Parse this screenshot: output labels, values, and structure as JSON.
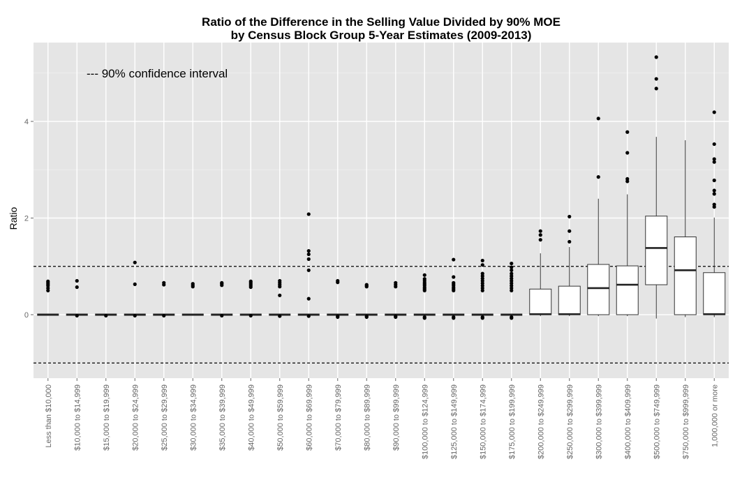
{
  "chart_data": {
    "type": "box",
    "title": "Ratio of the Difference in the Selling Value Divided by 90% MOE",
    "subtitle": "by Census Block Group 5-Year Estimates (2009-2013)",
    "xlabel": "",
    "ylabel": "Ratio",
    "ylim": [
      -1.3,
      5.6
    ],
    "yticks": [
      0,
      2,
      4
    ],
    "grid": true,
    "annotation": "--- 90% confidence interval",
    "reference_lines": [
      1,
      -1
    ],
    "categories": [
      "Less than $10,000",
      "$10,000 to $14,999",
      "$15,000 to $19,999",
      "$20,000 to $24,999",
      "$25,000 to $29,999",
      "$30,000 to $34,999",
      "$35,000 to $39,999",
      "$40,000 to $49,999",
      "$50,000 to $59,999",
      "$60,000 to $69,999",
      "$70,000 to $79,999",
      "$80,000 to $89,999",
      "$90,000 to $99,999",
      "$100,000 to $124,999",
      "$125,000 to $149,999",
      "$150,000 to $174,999",
      "$175,000 to $199,999",
      "$200,000 to $249,999",
      "$250,000 to $299,999",
      "$300,000 to $399,999",
      "$400,000 to $409,999",
      "$500,000 to $749,999",
      "$750,000 to $999,999",
      "1,000,000 or more"
    ],
    "boxes": [
      {
        "low": 0,
        "q1": 0,
        "median": 0,
        "q3": 0,
        "high": 0,
        "outliers": [
          0.5,
          0.55,
          0.6,
          0.63,
          0.66,
          0.69
        ]
      },
      {
        "low": -0.02,
        "q1": 0,
        "median": 0,
        "q3": 0,
        "high": 0,
        "outliers": [
          0.57,
          0.7,
          -0.02
        ]
      },
      {
        "low": -0.02,
        "q1": 0,
        "median": 0,
        "q3": 0,
        "high": 0,
        "outliers": [
          -0.02
        ]
      },
      {
        "low": -0.02,
        "q1": 0,
        "median": 0,
        "q3": 0,
        "high": 0,
        "outliers": [
          0.63,
          1.08,
          -0.02
        ]
      },
      {
        "low": -0.02,
        "q1": 0,
        "median": 0,
        "q3": 0,
        "high": 0,
        "outliers": [
          0.62,
          0.66,
          -0.02
        ]
      },
      {
        "low": 0,
        "q1": 0,
        "median": 0,
        "q3": 0,
        "high": 0,
        "outliers": [
          0.58,
          0.61,
          0.64
        ]
      },
      {
        "low": -0.02,
        "q1": 0,
        "median": 0,
        "q3": 0,
        "high": 0,
        "outliers": [
          0.61,
          0.64,
          0.66,
          -0.02
        ]
      },
      {
        "low": -0.02,
        "q1": 0,
        "median": 0,
        "q3": 0,
        "high": 0,
        "outliers": [
          0.57,
          0.6,
          0.63,
          0.66,
          0.69,
          -0.02
        ]
      },
      {
        "low": -0.03,
        "q1": 0,
        "median": 0,
        "q3": 0,
        "high": 0,
        "outliers": [
          0.4,
          0.58,
          0.62,
          0.66,
          0.7,
          -0.03
        ]
      },
      {
        "low": -0.03,
        "q1": 0,
        "median": 0,
        "q3": 0,
        "high": 0,
        "outliers": [
          0.33,
          0.92,
          1.15,
          1.25,
          1.32,
          2.08,
          -0.03
        ]
      },
      {
        "low": -0.05,
        "q1": 0,
        "median": 0,
        "q3": 0,
        "high": 0,
        "outliers": [
          0.67,
          0.7,
          -0.05,
          -0.03
        ]
      },
      {
        "low": -0.05,
        "q1": 0,
        "median": 0,
        "q3": 0,
        "high": 0,
        "outliers": [
          0.58,
          0.6,
          0.62,
          -0.05,
          -0.03
        ]
      },
      {
        "low": -0.05,
        "q1": 0,
        "median": 0,
        "q3": 0,
        "high": 0,
        "outliers": [
          0.58,
          0.62,
          0.66,
          -0.05,
          -0.03
        ]
      },
      {
        "low": -0.07,
        "q1": 0,
        "median": 0,
        "q3": 0,
        "high": 0,
        "outliers": [
          0.5,
          0.53,
          0.56,
          0.6,
          0.63,
          0.66,
          0.7,
          0.74,
          0.82,
          -0.07,
          -0.05
        ]
      },
      {
        "low": -0.07,
        "q1": 0,
        "median": 0,
        "q3": 0,
        "high": 0,
        "outliers": [
          0.5,
          0.53,
          0.56,
          0.6,
          0.63,
          0.66,
          0.78,
          1.14,
          -0.07,
          -0.05
        ]
      },
      {
        "low": -0.07,
        "q1": 0,
        "median": 0,
        "q3": 0,
        "high": 0,
        "outliers": [
          0.5,
          0.55,
          0.6,
          0.65,
          0.7,
          0.75,
          0.8,
          0.85,
          1.03,
          1.12,
          -0.07,
          -0.05
        ]
      },
      {
        "low": -0.07,
        "q1": 0,
        "median": 0,
        "q3": 0,
        "high": 0,
        "outliers": [
          0.5,
          0.55,
          0.6,
          0.65,
          0.7,
          0.75,
          0.8,
          0.85,
          0.92,
          0.98,
          1.06,
          -0.07,
          -0.05
        ]
      },
      {
        "low": -0.03,
        "q1": 0,
        "median": 0.01,
        "q3": 0.53,
        "high": 1.27,
        "outliers": [
          1.55,
          1.65,
          1.73
        ]
      },
      {
        "low": -0.03,
        "q1": 0,
        "median": 0.01,
        "q3": 0.59,
        "high": 1.4,
        "outliers": [
          1.51,
          1.73,
          2.03
        ]
      },
      {
        "low": -0.03,
        "q1": 0,
        "median": 0.55,
        "q3": 1.04,
        "high": 2.4,
        "outliers": [
          2.85,
          4.06
        ]
      },
      {
        "low": -0.03,
        "q1": 0,
        "median": 0.62,
        "q3": 1.01,
        "high": 2.49,
        "outliers": [
          2.76,
          2.81,
          3.35,
          3.78
        ]
      },
      {
        "low": -0.08,
        "q1": 0.62,
        "median": 1.38,
        "q3": 2.04,
        "high": 3.68,
        "outliers": [
          4.68,
          4.88,
          5.33
        ]
      },
      {
        "low": -0.05,
        "q1": 0,
        "median": 0.92,
        "q3": 1.61,
        "high": 3.61,
        "outliers": []
      },
      {
        "low": -0.05,
        "q1": 0,
        "median": 0.01,
        "q3": 0.87,
        "high": 2.01,
        "outliers": [
          2.23,
          2.28,
          2.5,
          2.57,
          2.78,
          3.16,
          3.22,
          3.53,
          4.19
        ]
      }
    ]
  }
}
